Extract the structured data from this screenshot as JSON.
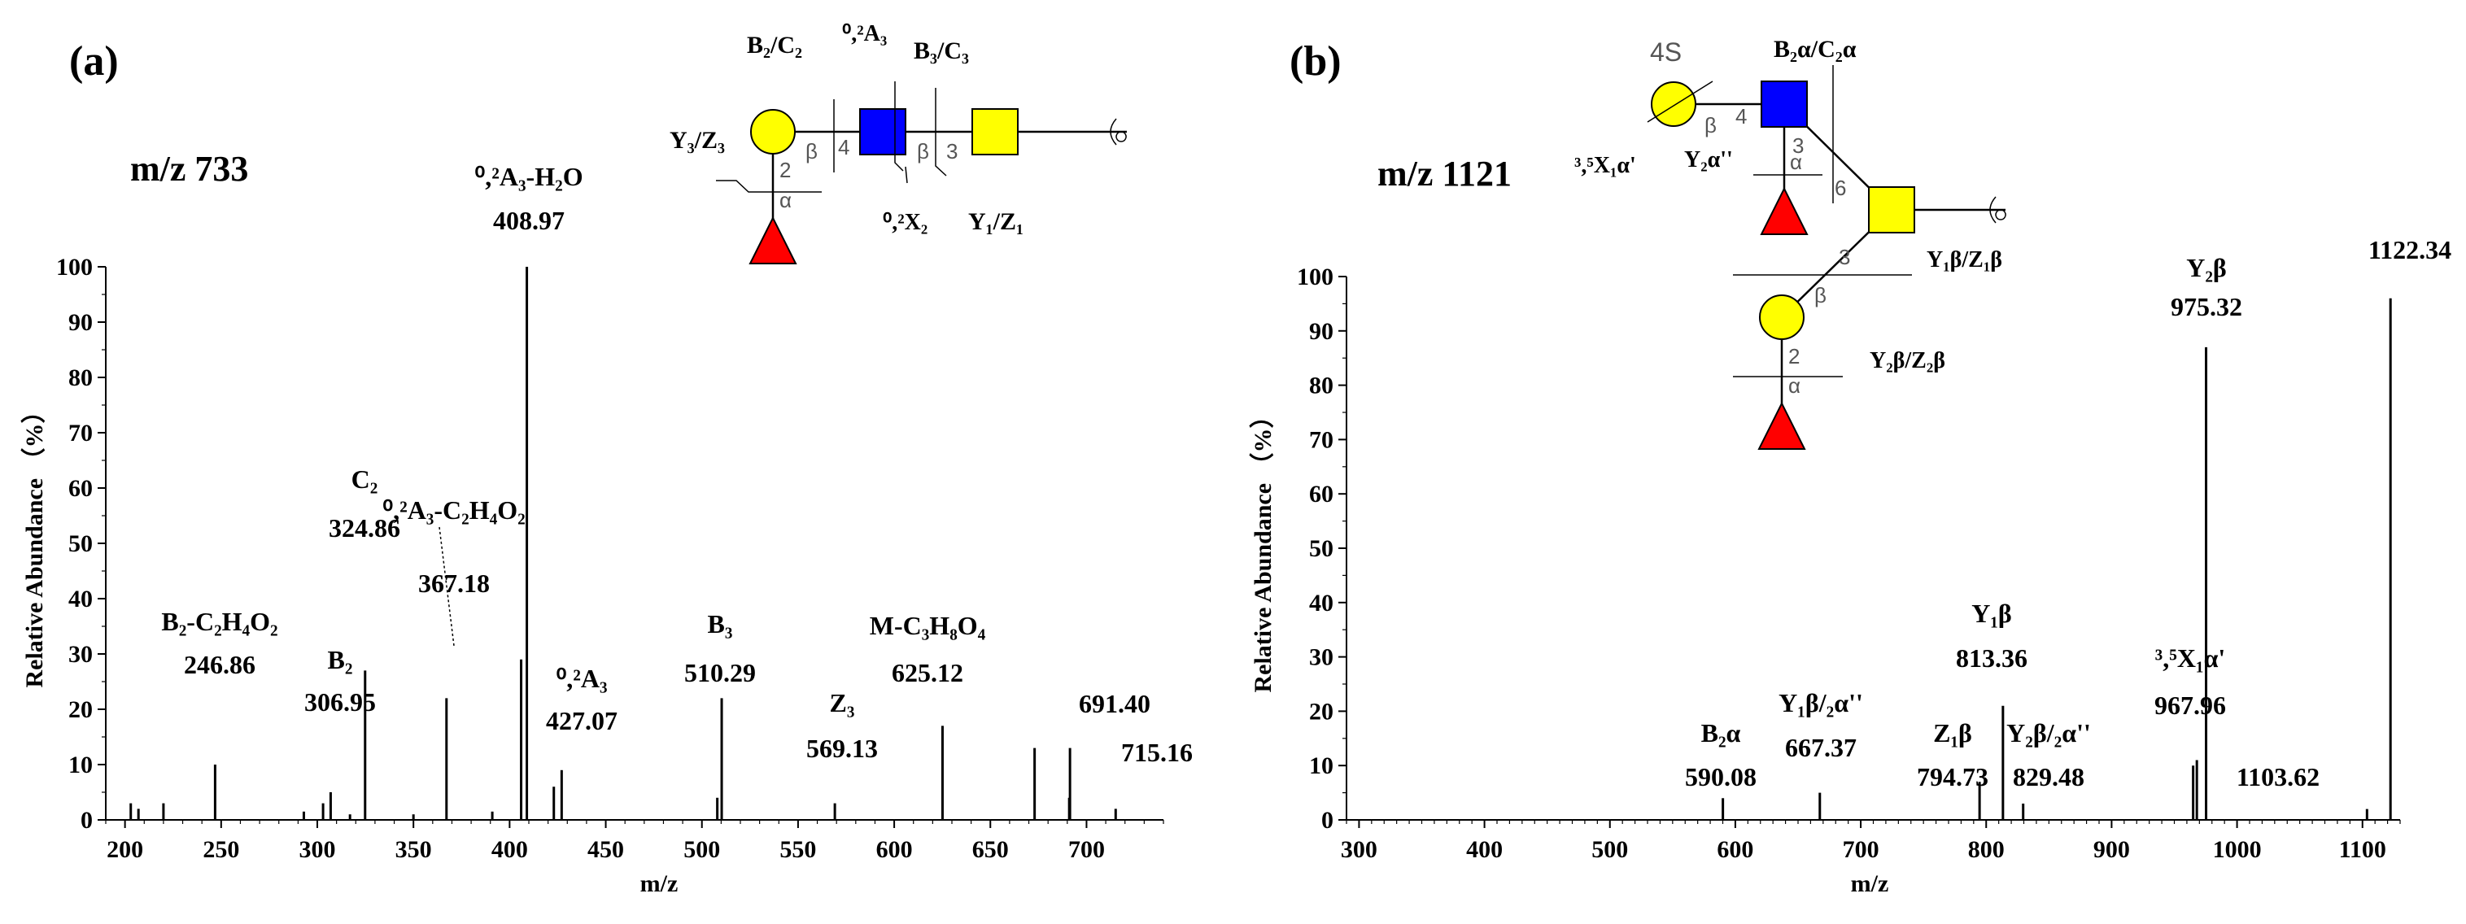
{
  "chart_data": [
    {
      "type": "bar",
      "panel_label": "(a)",
      "precursor": "m/z 733",
      "xlabel": "m/z",
      "ylabel": "Relative Abundance （%）",
      "xlim": [
        190,
        740
      ],
      "ylim": [
        0,
        100
      ],
      "xticks": [
        "200",
        "250",
        "300",
        "350",
        "400",
        "450",
        "500",
        "550",
        "600",
        "650",
        "700"
      ],
      "yticks": [
        "0",
        "10",
        "20",
        "30",
        "40",
        "50",
        "60",
        "70",
        "80",
        "90",
        "100"
      ],
      "peaks": [
        {
          "x": 203,
          "y": 3
        },
        {
          "x": 207,
          "y": 2
        },
        {
          "x": 220,
          "y": 3
        },
        {
          "x": 246.86,
          "y": 10
        },
        {
          "x": 293,
          "y": 1.5
        },
        {
          "x": 303,
          "y": 3
        },
        {
          "x": 306.95,
          "y": 5
        },
        {
          "x": 317,
          "y": 1
        },
        {
          "x": 324.86,
          "y": 27
        },
        {
          "x": 350,
          "y": 1
        },
        {
          "x": 367.18,
          "y": 22
        },
        {
          "x": 391,
          "y": 1.5
        },
        {
          "x": 406,
          "y": 29
        },
        {
          "x": 408.97,
          "y": 100
        },
        {
          "x": 423,
          "y": 6
        },
        {
          "x": 427.07,
          "y": 9
        },
        {
          "x": 510.29,
          "y": 22
        },
        {
          "x": 508,
          "y": 4
        },
        {
          "x": 569.13,
          "y": 3
        },
        {
          "x": 625.12,
          "y": 17
        },
        {
          "x": 673,
          "y": 13
        },
        {
          "x": 691.4,
          "y": 13
        },
        {
          "x": 691,
          "y": 4
        },
        {
          "x": 715.16,
          "y": 2
        }
      ],
      "annotations": [
        {
          "x": 408.97,
          "name": "⁰,²A₃-H₂O",
          "value": "408.97"
        },
        {
          "x": 367.18,
          "name": "⁰,²A₃-C₂H₄O₂",
          "value": "367.18"
        },
        {
          "x": 324.86,
          "name": "C₂",
          "value": "324.86"
        },
        {
          "x": 246.86,
          "name": "B₂-C₂H₄O₂",
          "value": "246.86"
        },
        {
          "x": 306.95,
          "name": "B₂",
          "value": "306.95"
        },
        {
          "x": 427.07,
          "name": "⁰,²A₃",
          "value": "427.07"
        },
        {
          "x": 510.29,
          "name": "B₃",
          "value": "510.29"
        },
        {
          "x": 569.13,
          "name": "Z₃",
          "value": "569.13"
        },
        {
          "x": 625.12,
          "name": "M-C₃H₈O₄",
          "value": "625.12"
        },
        {
          "x": 691.4,
          "name": "",
          "value": "691.40"
        },
        {
          "x": 715.16,
          "name": "",
          "value": "715.16"
        }
      ]
    },
    {
      "type": "bar",
      "panel_label": "(b)",
      "precursor": "m/z 1121",
      "xlabel": "m/z",
      "ylabel": "Relative Abundance （%）",
      "xlim": [
        290,
        1130
      ],
      "ylim": [
        0,
        100
      ],
      "xticks": [
        "300",
        "400",
        "500",
        "600",
        "700",
        "800",
        "900",
        "1000",
        "1100"
      ],
      "yticks": [
        "0",
        "10",
        "20",
        "30",
        "40",
        "50",
        "60",
        "70",
        "80",
        "90",
        "100"
      ],
      "peaks": [
        {
          "x": 590.08,
          "y": 4
        },
        {
          "x": 667.37,
          "y": 5
        },
        {
          "x": 794.73,
          "y": 7
        },
        {
          "x": 813.36,
          "y": 21
        },
        {
          "x": 829.48,
          "y": 3
        },
        {
          "x": 965,
          "y": 10
        },
        {
          "x": 967.96,
          "y": 11
        },
        {
          "x": 975.32,
          "y": 87
        },
        {
          "x": 1103.62,
          "y": 2
        },
        {
          "x": 1122.34,
          "y": 96
        }
      ],
      "annotations": [
        {
          "x": 1122.34,
          "name": "",
          "value": "1122.34"
        },
        {
          "x": 975.32,
          "name": "Y₂β",
          "value": "975.32"
        },
        {
          "x": 813.36,
          "name": "Y₁β",
          "value": "813.36"
        },
        {
          "x": 967.96,
          "name": "³,⁵X₁α'",
          "value": "967.96"
        },
        {
          "x": 590.08,
          "name": "B₂α",
          "value": "590.08"
        },
        {
          "x": 667.37,
          "name": "Y₁β/₂α''",
          "value": "667.37"
        },
        {
          "x": 794.73,
          "name": "Z₁β",
          "value": "794.73"
        },
        {
          "x": 829.48,
          "name": "Y₂β/₂α''",
          "value": "829.48"
        },
        {
          "x": 1103.62,
          "name": "",
          "value": "1103.62"
        }
      ]
    }
  ],
  "structure_a": {
    "frag_b2c2": "B₂/C₂",
    "frag_02a3": "⁰,²A₃",
    "frag_b3c3": "B₃/C₃",
    "frag_y3z3": "Y₃/Z₃",
    "frag_02x2": "⁰,²X₂",
    "frag_y1z1": "Y₁/Z₁",
    "link_2": "2",
    "link_beta1": "β",
    "link_4": "4",
    "link_beta2": "β",
    "link_3": "3",
    "link_alpha": "α"
  },
  "structure_b": {
    "sulfate": "4S",
    "frag_b2c2": "B₂α/C₂α",
    "frag_35x": "³,⁵X₁α'",
    "frag_y2a": "Y₂α''",
    "frag_y1z1": "Y₁β/Z₁β",
    "frag_y2z2": "Y₂β/Z₂β",
    "link_beta_top": "β",
    "link_4": "4",
    "link_3_top": "3",
    "link_alpha_top": "α",
    "link_6": "6",
    "link_3": "3",
    "link_beta": "β",
    "link_2": "2",
    "link_alpha": "α"
  },
  "colors": {
    "galactose": "#ffff00",
    "glcnac": "#0000ff",
    "fucose": "#ff0000",
    "glc": "#ffff00"
  }
}
